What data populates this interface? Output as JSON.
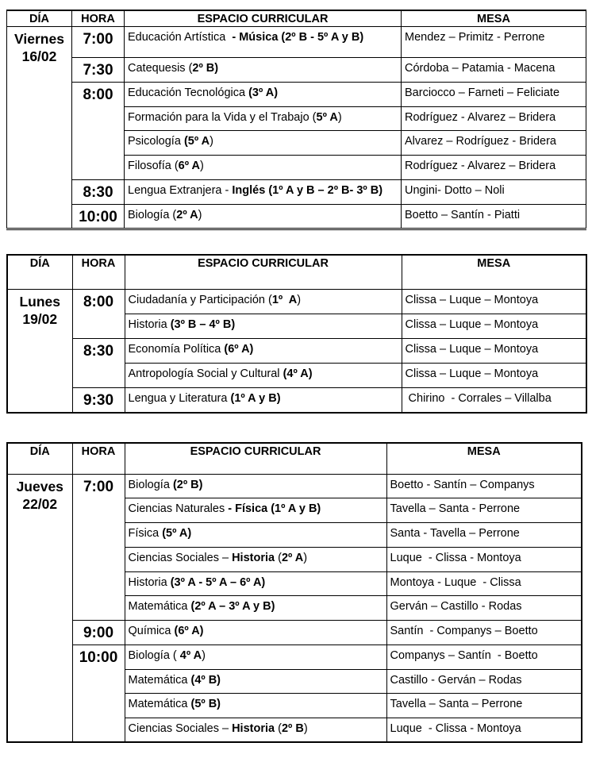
{
  "headers": {
    "dia": "DÍA",
    "hora": "HORA",
    "espacio": "ESPACIO CURRICULAR",
    "mesa": "MESA"
  },
  "tables": [
    {
      "dia": [
        "Viernes",
        "16/02"
      ],
      "groups": [
        {
          "hora": "7:00",
          "rows": [
            {
              "subject": [
                {
                  "t": "Educación Artística  "
                },
                {
                  "t": "- Música (2º B - 5º A y B)",
                  "b": true
                }
              ],
              "mesa": "Mendez – Primitz - Perrone"
            }
          ]
        },
        {
          "hora": "7:30",
          "rows": [
            {
              "subject": [
                {
                  "t": "Catequesis ("
                },
                {
                  "t": "2º B)",
                  "b": true
                }
              ],
              "mesa": "Córdoba – Patamia - Macena"
            }
          ]
        },
        {
          "hora": "8:00",
          "rows": [
            {
              "subject": [
                {
                  "t": "Educación Tecnológica "
                },
                {
                  "t": "(3º A)",
                  "b": true
                }
              ],
              "mesa": "Barciocco – Farneti – Feliciate"
            },
            {
              "subject": [
                {
                  "t": "Formación para la Vida y el Trabajo ("
                },
                {
                  "t": "5º A",
                  "b": true
                },
                {
                  "t": ")"
                }
              ],
              "mesa": "Rodríguez - Alvarez – Bridera"
            },
            {
              "subject": [
                {
                  "t": "Psicología "
                },
                {
                  "t": "(5º A",
                  "b": true
                },
                {
                  "t": ")"
                }
              ],
              "mesa": "Alvarez – Rodríguez - Bridera"
            },
            {
              "subject": [
                {
                  "t": "Filosofía ("
                },
                {
                  "t": "6º A",
                  "b": true
                },
                {
                  "t": ")"
                }
              ],
              "mesa": "Rodríguez - Alvarez – Bridera"
            }
          ]
        },
        {
          "hora": "8:30",
          "rows": [
            {
              "subject": [
                {
                  "t": "Lengua Extranjera - "
                },
                {
                  "t": "Inglés (1º A y B – 2º B- 3º B)",
                  "b": true
                }
              ],
              "mesa": "Ungini- Dotto – Noli"
            }
          ]
        },
        {
          "hora": "10:00",
          "rows": [
            {
              "subject": [
                {
                  "t": "Biología ("
                },
                {
                  "t": "2º A",
                  "b": true
                },
                {
                  "t": ")"
                }
              ],
              "mesa": "Boetto – Santín - Piatti"
            }
          ]
        }
      ]
    },
    {
      "dia": [
        "Lunes",
        "19/02"
      ],
      "groups": [
        {
          "hora": "8:00",
          "rows": [
            {
              "subject": [
                {
                  "t": "Ciudadanía y Participación ("
                },
                {
                  "t": "1º  A",
                  "b": true
                },
                {
                  "t": ")"
                }
              ],
              "mesa": "Clissa – Luque – Montoya"
            },
            {
              "subject": [
                {
                  "t": "Historia "
                },
                {
                  "t": "(3º B – 4º B)",
                  "b": true
                }
              ],
              "mesa": "Clissa – Luque – Montoya"
            }
          ]
        },
        {
          "hora": "8:30",
          "rows": [
            {
              "subject": [
                {
                  "t": "Economía Política "
                },
                {
                  "t": "(6º A)",
                  "b": true
                }
              ],
              "mesa": "Clissa – Luque – Montoya"
            },
            {
              "subject": [
                {
                  "t": "Antropología Social y Cultural "
                },
                {
                  "t": "(4º A)",
                  "b": true
                }
              ],
              "mesa": "Clissa – Luque – Montoya"
            }
          ]
        },
        {
          "hora": "9:30",
          "rows": [
            {
              "subject": [
                {
                  "t": "Lengua y Literatura "
                },
                {
                  "t": "(1º A y B)",
                  "b": true
                }
              ],
              "mesa": " Chirino  - Corrales – Villalba"
            }
          ]
        }
      ]
    },
    {
      "dia": [
        "Jueves",
        "22/02"
      ],
      "groups": [
        {
          "hora": "7:00",
          "rows": [
            {
              "subject": [
                {
                  "t": "Biología "
                },
                {
                  "t": "(2º B)",
                  "b": true
                }
              ],
              "mesa": "Boetto - Santín – Companys"
            },
            {
              "subject": [
                {
                  "t": "Ciencias Naturales "
                },
                {
                  "t": "- Física (1º A y B)",
                  "b": true
                }
              ],
              "mesa": "Tavella – Santa - Perrone"
            },
            {
              "subject": [
                {
                  "t": "Física "
                },
                {
                  "t": "(5º A)",
                  "b": true
                }
              ],
              "mesa": "Santa - Tavella – Perrone"
            },
            {
              "subject": [
                {
                  "t": "Ciencias Sociales – "
                },
                {
                  "t": "Historia",
                  "b": true
                },
                {
                  "t": " ("
                },
                {
                  "t": "2º A",
                  "b": true
                },
                {
                  "t": ")"
                }
              ],
              "mesa": "Luque  - Clissa - Montoya"
            },
            {
              "subject": [
                {
                  "t": "Historia "
                },
                {
                  "t": "(3º A - 5º A – 6º A)",
                  "b": true
                }
              ],
              "mesa": "Montoya - Luque  - Clissa"
            },
            {
              "subject": [
                {
                  "t": "Matemática "
                },
                {
                  "t": "(2º A – 3º A y B)",
                  "b": true
                }
              ],
              "mesa": "Gerván – Castillo - Rodas"
            }
          ]
        },
        {
          "hora": "9:00",
          "rows": [
            {
              "subject": [
                {
                  "t": "Química "
                },
                {
                  "t": "(6º A)",
                  "b": true
                }
              ],
              "mesa": "Santín  - Companys – Boetto"
            }
          ]
        },
        {
          "hora": "10:00",
          "rows": [
            {
              "subject": [
                {
                  "t": "Biología ( "
                },
                {
                  "t": "4º A",
                  "b": true
                },
                {
                  "t": ")"
                }
              ],
              "mesa": "Companys – Santín  - Boetto"
            },
            {
              "subject": [
                {
                  "t": "Matemática "
                },
                {
                  "t": "(4º B)",
                  "b": true
                }
              ],
              "mesa": "Castillo - Gerván – Rodas"
            },
            {
              "subject": [
                {
                  "t": "Matemática "
                },
                {
                  "t": "(5º B)",
                  "b": true
                }
              ],
              "mesa": "Tavella – Santa – Perrone"
            },
            {
              "subject": [
                {
                  "t": "Ciencias Sociales – "
                },
                {
                  "t": "Historia",
                  "b": true
                },
                {
                  "t": " ("
                },
                {
                  "t": "2º B",
                  "b": true
                },
                {
                  "t": ")"
                }
              ],
              "mesa": "Luque  - Clissa - Montoya"
            }
          ]
        }
      ]
    }
  ]
}
